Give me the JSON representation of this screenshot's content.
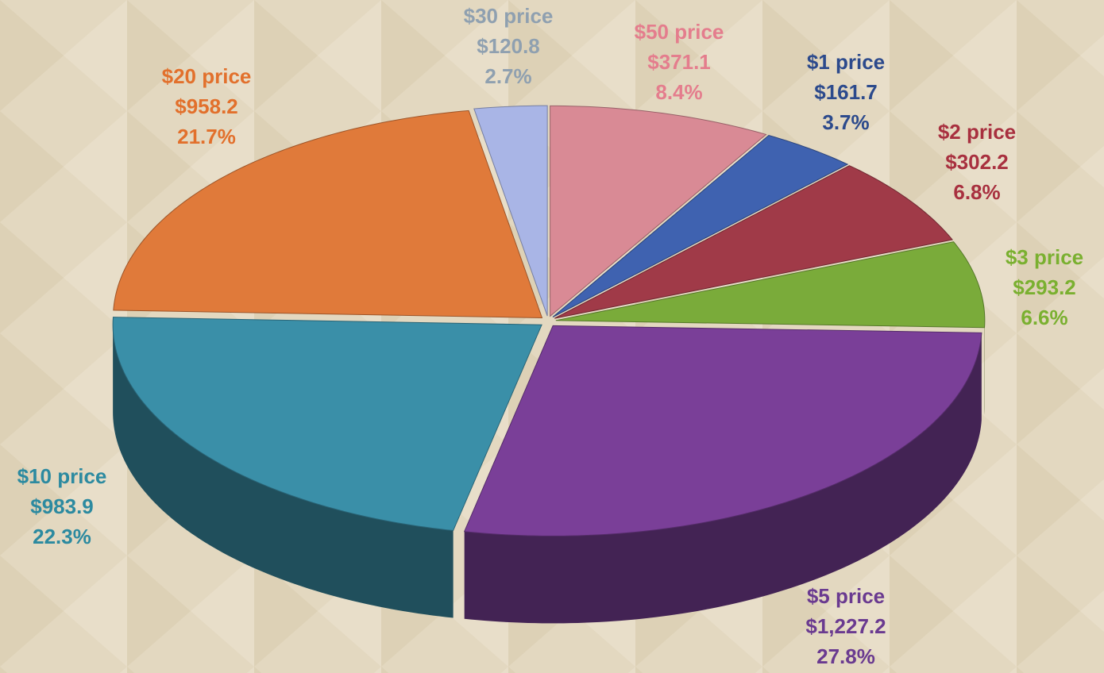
{
  "chart_data": {
    "type": "pie3d",
    "categories": [
      "$50 price",
      "$1 price",
      "$2 price",
      "$3 price",
      "$5 price",
      "$10 price",
      "$20 price",
      "$30 price"
    ],
    "values": [
      371.1,
      161.7,
      302.2,
      293.2,
      1227.2,
      983.9,
      958.2,
      120.8
    ],
    "value_labels": [
      "$371.1",
      "$161.7",
      "$302.2",
      "$293.2",
      "$1,227.2",
      "$983.9",
      "$958.2",
      "$120.8"
    ],
    "shares": [
      8.4,
      3.7,
      6.8,
      6.6,
      27.8,
      22.3,
      21.7,
      2.7
    ],
    "share_labels": [
      "8.4%",
      "3.7%",
      "6.8%",
      "6.6%",
      "27.8%",
      "22.3%",
      "21.7%",
      "2.7%"
    ],
    "colors": [
      "#d98a95",
      "#3f62b0",
      "#a03a48",
      "#7aab3a",
      "#7a3f98",
      "#3a8fa8",
      "#e07a3a",
      "#a9b5e6"
    ],
    "label_colors": [
      "#e47d8d",
      "#2c4a8c",
      "#a8303f",
      "#7ab030",
      "#6a3a90",
      "#2c8aa0",
      "#e2702c",
      "#8fa0b0"
    ]
  }
}
